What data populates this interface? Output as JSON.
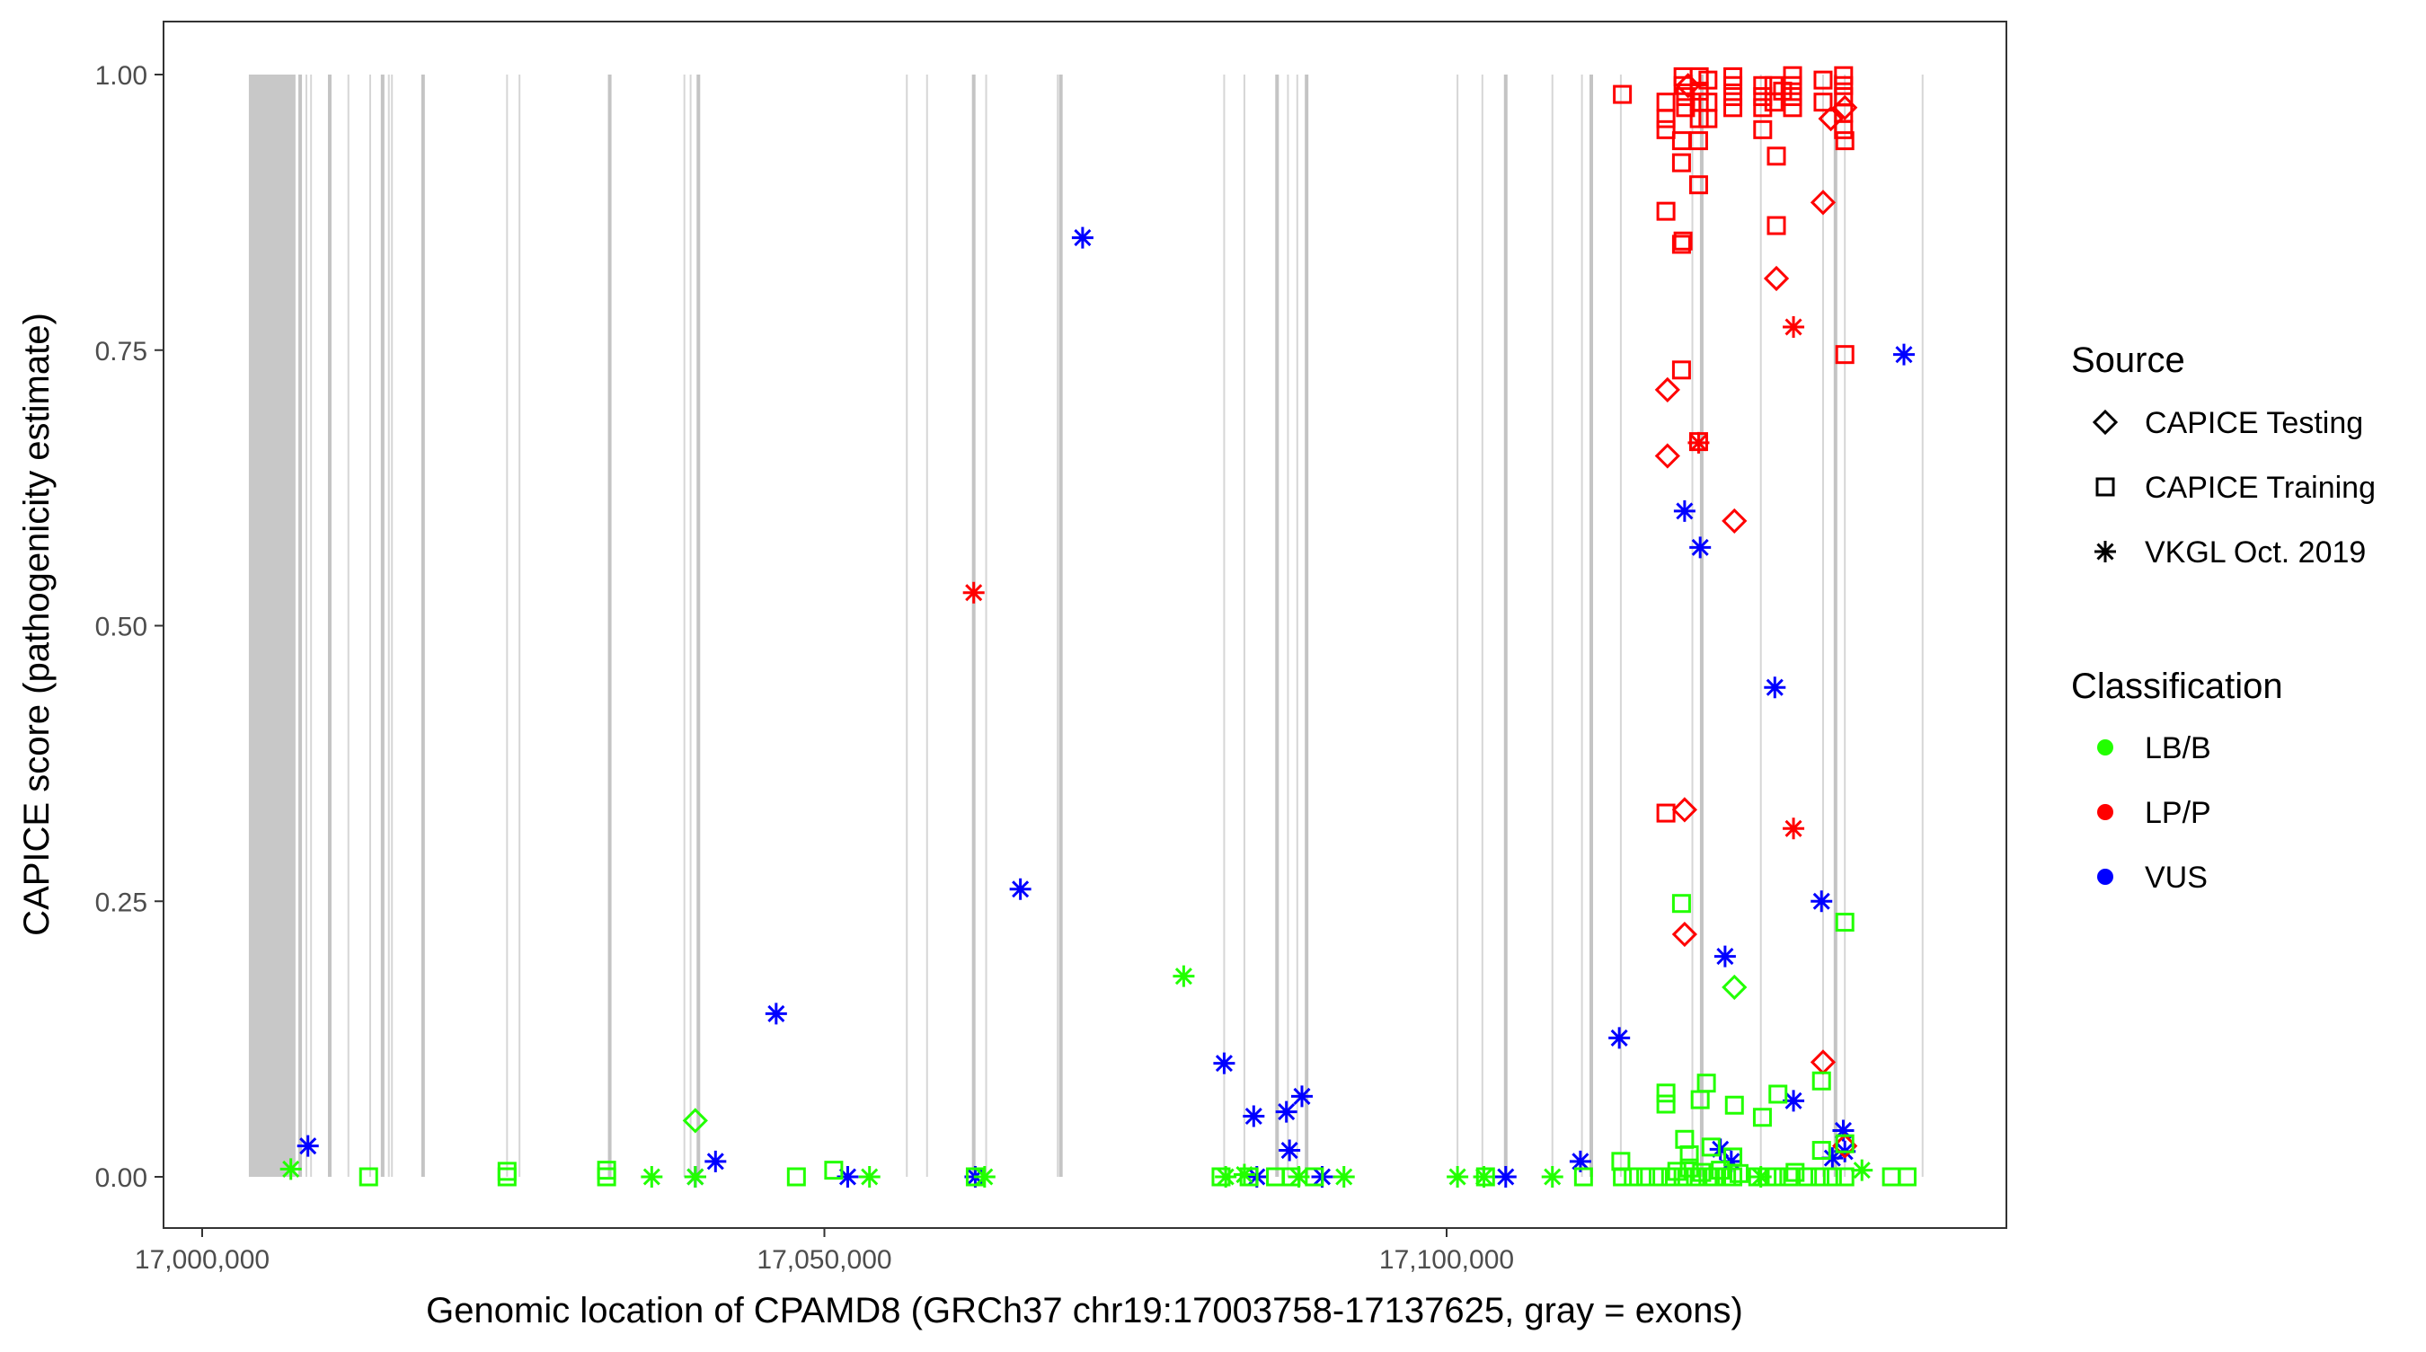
{
  "chart_data": {
    "type": "scatter",
    "xlabel": "Genomic location of CPAMD8 (GRCh37 chr19:17003758-17137625, gray = exons)",
    "ylabel": "CAPICE score (pathogenicity estimate)",
    "xlim": [
      16997000,
      17145000
    ],
    "ylim": [
      -0.045,
      1.05
    ],
    "x_ticks": [
      17000000,
      17050000,
      17100000
    ],
    "x_tick_labels": [
      "17,000,000",
      "17,050,000",
      "17,100,000"
    ],
    "y_ticks": [
      0,
      0.25,
      0.5,
      0.75,
      1.0
    ],
    "y_tick_labels": [
      "0.00",
      "0.25",
      "0.50",
      "0.75",
      "1.00"
    ],
    "grid": false,
    "legend_placement": "right",
    "legend": {
      "source_title": "Source",
      "sources": [
        {
          "key": "T",
          "label": "CAPICE Testing",
          "shape": "diamond"
        },
        {
          "key": "R",
          "label": "CAPICE Training",
          "shape": "square"
        },
        {
          "key": "V",
          "label": "VKGL Oct. 2019",
          "shape": "asterisk"
        }
      ],
      "class_title": "Classification",
      "classes": [
        {
          "key": "B",
          "label": "LB/B",
          "color": "#22ff00"
        },
        {
          "key": "P",
          "label": "LP/P",
          "color": "#ff0000"
        },
        {
          "key": "U",
          "label": "VUS",
          "color": "#0000ff"
        }
      ]
    },
    "exon_block": [
      17003750,
      17007500
    ],
    "exons": [
      17007875,
      17008375,
      17008750,
      17010250,
      17011750,
      17013500,
      17014500,
      17015000,
      17015250,
      17017750,
      17024500,
      17025500,
      17032750,
      17038750,
      17039250,
      17039875,
      17056625,
      17058250,
      17062000,
      17063000,
      17068750,
      17069000,
      17082125,
      17083750,
      17086375,
      17087250,
      17088000,
      17088750,
      17100875,
      17102875,
      17104750,
      17108500,
      17110875,
      17111625,
      17114000,
      17119750,
      17120500,
      17125250,
      17130250,
      17131250,
      17132000,
      17138250
    ],
    "point_fields": [
      "position",
      "score",
      "source",
      "classification"
    ],
    "points": [
      [
        17008500,
        0.028,
        "V",
        "U"
      ],
      [
        17041250,
        0.014,
        "V",
        "U"
      ],
      [
        17039625,
        0,
        "V",
        "U"
      ],
      [
        17046125,
        0.148,
        "V",
        "U"
      ],
      [
        17051875,
        0,
        "V",
        "U"
      ],
      [
        17062125,
        0,
        "V",
        "U"
      ],
      [
        17065750,
        0.261,
        "V",
        "U"
      ],
      [
        17070750,
        0.852,
        "V",
        "U"
      ],
      [
        17082125,
        0.103,
        "V",
        "U"
      ],
      [
        17084500,
        0.055,
        "V",
        "U"
      ],
      [
        17084750,
        0,
        "V",
        "U"
      ],
      [
        17087125,
        0.059,
        "V",
        "U"
      ],
      [
        17087375,
        0.024,
        "V",
        "U"
      ],
      [
        17088375,
        0.073,
        "V",
        "U"
      ],
      [
        17090000,
        0,
        "V",
        "U"
      ],
      [
        17104750,
        0,
        "V",
        "U"
      ],
      [
        17110750,
        0.014,
        "V",
        "U"
      ],
      [
        17113875,
        0.126,
        "V",
        "U"
      ],
      [
        17119125,
        0.604,
        "V",
        "U"
      ],
      [
        17120375,
        0.571,
        "V",
        "U"
      ],
      [
        17122000,
        0.025,
        "V",
        "U"
      ],
      [
        17122375,
        0.2,
        "V",
        "U"
      ],
      [
        17122875,
        0.014,
        "V",
        "U"
      ],
      [
        17126375,
        0.444,
        "V",
        "U"
      ],
      [
        17127875,
        0.069,
        "V",
        "U"
      ],
      [
        17130125,
        0.25,
        "V",
        "U"
      ],
      [
        17131000,
        0.017,
        "V",
        "U"
      ],
      [
        17131875,
        0.042,
        "V",
        "U"
      ],
      [
        17132000,
        0.023,
        "V",
        "U"
      ],
      [
        17136750,
        0.746,
        "V",
        "U"
      ],
      [
        17062000,
        0.53,
        "V",
        "P"
      ],
      [
        17120250,
        0.666,
        "V",
        "P"
      ],
      [
        17127875,
        0.771,
        "V",
        "P"
      ],
      [
        17127875,
        0.316,
        "V",
        "P"
      ],
      [
        17117750,
        0.714,
        "T",
        "P"
      ],
      [
        17117750,
        0.654,
        "T",
        "P"
      ],
      [
        17119125,
        0.333,
        "T",
        "P"
      ],
      [
        17119125,
        0.22,
        "T",
        "P"
      ],
      [
        17123125,
        0.595,
        "T",
        "P"
      ],
      [
        17126500,
        0.815,
        "T",
        "P"
      ],
      [
        17130250,
        0.884,
        "T",
        "P"
      ],
      [
        17130250,
        0.104,
        "T",
        "P"
      ],
      [
        17132000,
        0.028,
        "T",
        "P"
      ],
      [
        17130875,
        0.96,
        "T",
        "P"
      ],
      [
        17132000,
        0.97,
        "T",
        "P"
      ],
      [
        17119400,
        0.99,
        "T",
        "P"
      ],
      [
        17114125,
        0.982,
        "R",
        "P"
      ],
      [
        17117625,
        0.975,
        "R",
        "P"
      ],
      [
        17117625,
        0.96,
        "R",
        "P"
      ],
      [
        17117625,
        0.95,
        "R",
        "P"
      ],
      [
        17117625,
        0.876,
        "R",
        "P"
      ],
      [
        17117625,
        0.33,
        "R",
        "P"
      ],
      [
        17118875,
        0.732,
        "R",
        "P"
      ],
      [
        17118875,
        0.846,
        "R",
        "P"
      ],
      [
        17119000,
        0.849,
        "R",
        "P"
      ],
      [
        17118875,
        0.92,
        "R",
        "P"
      ],
      [
        17118875,
        0.94,
        "R",
        "P"
      ],
      [
        17120250,
        0.9,
        "R",
        "P"
      ],
      [
        17120250,
        0.94,
        "R",
        "P"
      ],
      [
        17120250,
        0.667,
        "R",
        "P"
      ],
      [
        17119000,
        0.998,
        "R",
        "P"
      ],
      [
        17119000,
        0.99,
        "R",
        "P"
      ],
      [
        17119200,
        0.98,
        "R",
        "P"
      ],
      [
        17119200,
        0.97,
        "R",
        "P"
      ],
      [
        17120300,
        0.998,
        "R",
        "P"
      ],
      [
        17120300,
        0.985,
        "R",
        "P"
      ],
      [
        17120300,
        0.975,
        "R",
        "P"
      ],
      [
        17120300,
        0.96,
        "R",
        "P"
      ],
      [
        17121000,
        0.995,
        "R",
        "P"
      ],
      [
        17121000,
        0.975,
        "R",
        "P"
      ],
      [
        17121000,
        0.96,
        "R",
        "P"
      ],
      [
        17123000,
        0.998,
        "R",
        "P"
      ],
      [
        17123000,
        0.99,
        "R",
        "P"
      ],
      [
        17123000,
        0.98,
        "R",
        "P"
      ],
      [
        17123000,
        0.97,
        "R",
        "P"
      ],
      [
        17125400,
        0.99,
        "R",
        "P"
      ],
      [
        17125400,
        0.98,
        "R",
        "P"
      ],
      [
        17125400,
        0.97,
        "R",
        "P"
      ],
      [
        17125400,
        0.95,
        "R",
        "P"
      ],
      [
        17126300,
        0.99,
        "R",
        "P"
      ],
      [
        17126300,
        0.975,
        "R",
        "P"
      ],
      [
        17126500,
        0.926,
        "R",
        "P"
      ],
      [
        17126500,
        0.863,
        "R",
        "P"
      ],
      [
        17127000,
        0.985,
        "R",
        "P"
      ],
      [
        17127800,
        0.999,
        "R",
        "P"
      ],
      [
        17127800,
        0.99,
        "R",
        "P"
      ],
      [
        17127800,
        0.98,
        "R",
        "P"
      ],
      [
        17127800,
        0.97,
        "R",
        "P"
      ],
      [
        17130250,
        0.995,
        "R",
        "P"
      ],
      [
        17130250,
        0.975,
        "R",
        "P"
      ],
      [
        17131900,
        0.999,
        "R",
        "P"
      ],
      [
        17131900,
        0.99,
        "R",
        "P"
      ],
      [
        17131900,
        0.98,
        "R",
        "P"
      ],
      [
        17131900,
        0.965,
        "R",
        "P"
      ],
      [
        17131900,
        0.95,
        "R",
        "P"
      ],
      [
        17132000,
        0.94,
        "R",
        "P"
      ],
      [
        17132000,
        0.746,
        "R",
        "P"
      ],
      [
        17039625,
        0.051,
        "T",
        "B"
      ],
      [
        17123125,
        0.172,
        "T",
        "B"
      ],
      [
        17007125,
        0.007,
        "V",
        "B"
      ],
      [
        17078875,
        0.182,
        "V",
        "B"
      ],
      [
        17036125,
        0,
        "V",
        "B"
      ],
      [
        17039625,
        0,
        "V",
        "B"
      ],
      [
        17053625,
        0,
        "V",
        "B"
      ],
      [
        17062875,
        0,
        "V",
        "B"
      ],
      [
        17082250,
        0,
        "V",
        "B"
      ],
      [
        17083750,
        0.002,
        "V",
        "B"
      ],
      [
        17088125,
        0,
        "V",
        "B"
      ],
      [
        17091750,
        0,
        "V",
        "B"
      ],
      [
        17100875,
        0,
        "V",
        "B"
      ],
      [
        17103000,
        0,
        "V",
        "B"
      ],
      [
        17108500,
        0,
        "V",
        "B"
      ],
      [
        17125250,
        0,
        "V",
        "B"
      ],
      [
        17133375,
        0.006,
        "V",
        "B"
      ],
      [
        17118875,
        0.248,
        "R",
        "B"
      ],
      [
        17132000,
        0.231,
        "R",
        "B"
      ],
      [
        17117625,
        0.076,
        "R",
        "B"
      ],
      [
        17117625,
        0.066,
        "R",
        "B"
      ],
      [
        17120875,
        0.085,
        "R",
        "B"
      ],
      [
        17120375,
        0.07,
        "R",
        "B"
      ],
      [
        17123125,
        0.065,
        "R",
        "B"
      ],
      [
        17126625,
        0.075,
        "R",
        "B"
      ],
      [
        17130125,
        0.087,
        "R",
        "B"
      ],
      [
        17125375,
        0.054,
        "R",
        "B"
      ],
      [
        17119125,
        0.034,
        "R",
        "B"
      ],
      [
        17121250,
        0.027,
        "R",
        "B"
      ],
      [
        17130125,
        0.024,
        "R",
        "B"
      ],
      [
        17132000,
        0.03,
        "R",
        "B"
      ],
      [
        17114000,
        0.014,
        "R",
        "B"
      ],
      [
        17123000,
        0.018,
        "R",
        "B"
      ],
      [
        17119500,
        0.02,
        "R",
        "B"
      ],
      [
        17013375,
        0,
        "R",
        "B"
      ],
      [
        17024500,
        0,
        "R",
        "B"
      ],
      [
        17024500,
        0.005,
        "R",
        "B"
      ],
      [
        17032500,
        0,
        "R",
        "B"
      ],
      [
        17032500,
        0.006,
        "R",
        "B"
      ],
      [
        17047750,
        0,
        "R",
        "B"
      ],
      [
        17050750,
        0.006,
        "R",
        "B"
      ],
      [
        17062125,
        0,
        "R",
        "B"
      ],
      [
        17081875,
        0,
        "R",
        "B"
      ],
      [
        17084125,
        0,
        "R",
        "B"
      ],
      [
        17086250,
        0,
        "R",
        "B"
      ],
      [
        17087500,
        0,
        "R",
        "B"
      ],
      [
        17089375,
        0,
        "R",
        "B"
      ],
      [
        17103125,
        0,
        "R",
        "B"
      ],
      [
        17111000,
        0,
        "R",
        "B"
      ],
      [
        17114125,
        0,
        "R",
        "B"
      ],
      [
        17115000,
        0,
        "R",
        "B"
      ],
      [
        17116000,
        0,
        "R",
        "B"
      ],
      [
        17117000,
        0,
        "R",
        "B"
      ],
      [
        17118000,
        0,
        "R",
        "B"
      ],
      [
        17118500,
        0.005,
        "R",
        "B"
      ],
      [
        17119000,
        0,
        "R",
        "B"
      ],
      [
        17119500,
        0.008,
        "R",
        "B"
      ],
      [
        17120000,
        0,
        "R",
        "B"
      ],
      [
        17120500,
        0.004,
        "R",
        "B"
      ],
      [
        17121000,
        0,
        "R",
        "B"
      ],
      [
        17121500,
        0,
        "R",
        "B"
      ],
      [
        17122000,
        0.006,
        "R",
        "B"
      ],
      [
        17122500,
        0,
        "R",
        "B"
      ],
      [
        17123000,
        0,
        "R",
        "B"
      ],
      [
        17123500,
        0.003,
        "R",
        "B"
      ],
      [
        17125000,
        0,
        "R",
        "B"
      ],
      [
        17125750,
        0,
        "R",
        "B"
      ],
      [
        17126500,
        0,
        "R",
        "B"
      ],
      [
        17127500,
        0,
        "R",
        "B"
      ],
      [
        17128000,
        0.004,
        "R",
        "B"
      ],
      [
        17129000,
        0,
        "R",
        "B"
      ],
      [
        17130000,
        0,
        "R",
        "B"
      ],
      [
        17131000,
        0,
        "R",
        "B"
      ],
      [
        17132000,
        0,
        "R",
        "B"
      ],
      [
        17135750,
        0,
        "R",
        "B"
      ],
      [
        17137000,
        0,
        "R",
        "B"
      ]
    ]
  }
}
